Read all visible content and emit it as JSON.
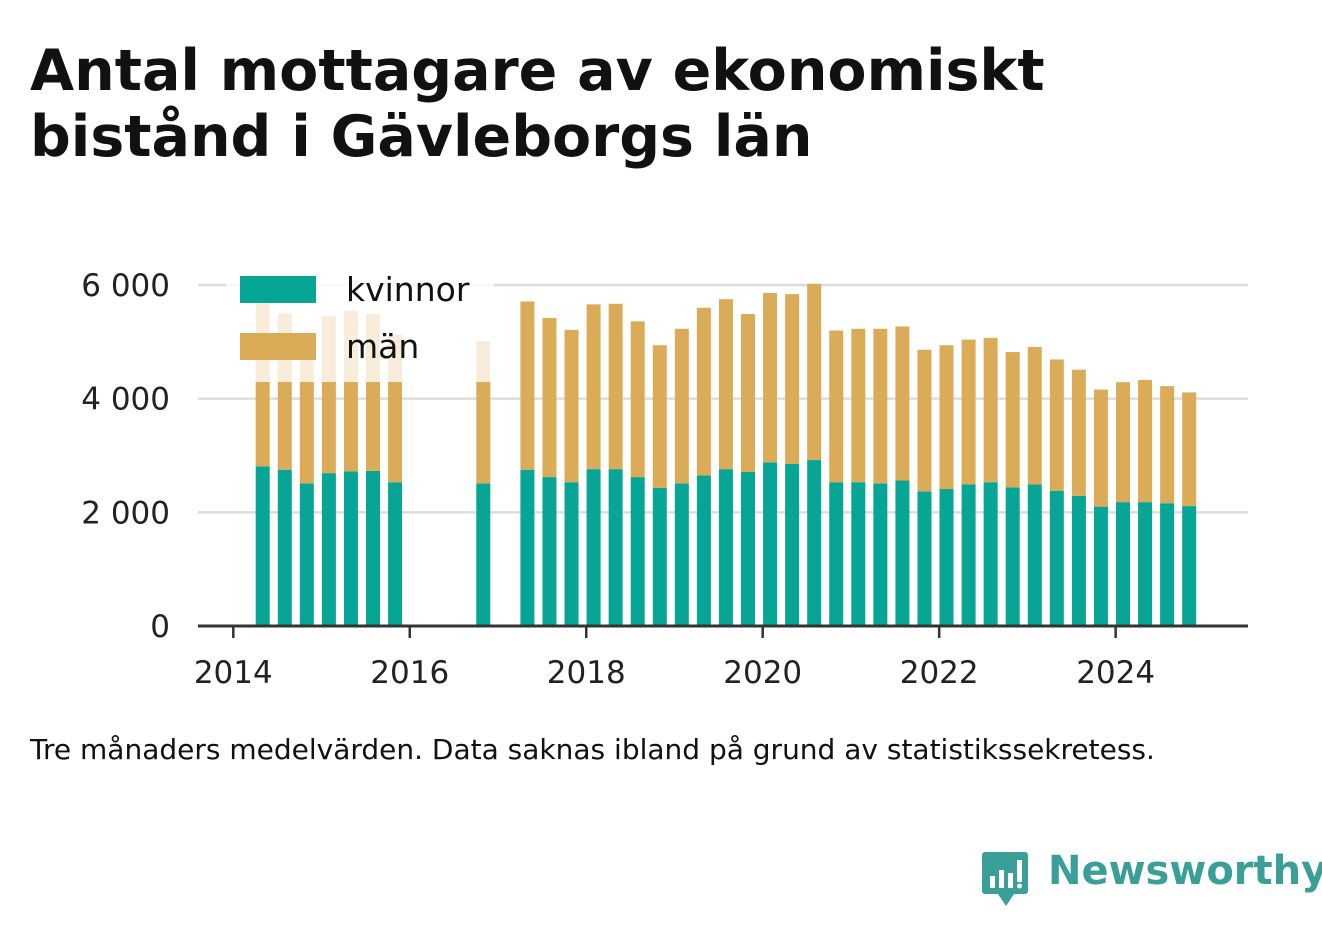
{
  "title": "Antal mottagare av ekonomiskt bistånd i Gävleborgs län",
  "note": "Tre månaders medelvärden. Data saknas ibland på grund av statistikssekretess.",
  "brand": {
    "name": "Newsworthy",
    "color": "#3a9f98",
    "icon": "newsworthy-logo-icon"
  },
  "colors": {
    "kvinnor": "#07a596",
    "man": "#dbac58",
    "grid": "#dddddd",
    "axis": "#333333"
  },
  "chart_data": {
    "type": "bar",
    "stacked": true,
    "x_label": "",
    "y_label": "",
    "ylim": [
      0,
      6000
    ],
    "yticks": [
      0,
      2000,
      4000,
      6000
    ],
    "ytick_labels": [
      "0",
      "2 000",
      "4 000",
      "6 000"
    ],
    "xticks": [
      2014,
      2016,
      2018,
      2020,
      2022,
      2024
    ],
    "xtick_labels": [
      "2014",
      "2016",
      "2018",
      "2020",
      "2022",
      "2024"
    ],
    "xlim": [
      2013.6,
      2025.5
    ],
    "grid": "horizontal",
    "legend_position": "top-left",
    "series": [
      {
        "name": "kvinnor",
        "color": "#07a596"
      },
      {
        "name": "män",
        "color": "#dbac58"
      }
    ],
    "points": [
      {
        "x": "2014-05",
        "kvinnor": 2810,
        "man": 2990
      },
      {
        "x": "2014-08",
        "kvinnor": 2750,
        "man": 2750
      },
      {
        "x": "2014-11",
        "kvinnor": 2510,
        "man": 2560
      },
      {
        "x": "2015-02",
        "kvinnor": 2690,
        "man": 2760
      },
      {
        "x": "2015-05",
        "kvinnor": 2720,
        "man": 2830
      },
      {
        "x": "2015-08",
        "kvinnor": 2730,
        "man": 2760
      },
      {
        "x": "2015-11",
        "kvinnor": 2530,
        "man": 2590
      },
      {
        "x": "2016-11",
        "kvinnor": 2510,
        "man": 2500
      },
      {
        "x": "2017-05",
        "kvinnor": 2750,
        "man": 2960
      },
      {
        "x": "2017-08",
        "kvinnor": 2620,
        "man": 2800
      },
      {
        "x": "2017-11",
        "kvinnor": 2530,
        "man": 2680
      },
      {
        "x": "2018-02",
        "kvinnor": 2760,
        "man": 2900
      },
      {
        "x": "2018-05",
        "kvinnor": 2760,
        "man": 2910
      },
      {
        "x": "2018-08",
        "kvinnor": 2620,
        "man": 2740
      },
      {
        "x": "2018-11",
        "kvinnor": 2430,
        "man": 2510
      },
      {
        "x": "2019-02",
        "kvinnor": 2510,
        "man": 2720
      },
      {
        "x": "2019-05",
        "kvinnor": 2650,
        "man": 2950
      },
      {
        "x": "2019-08",
        "kvinnor": 2760,
        "man": 2990
      },
      {
        "x": "2019-11",
        "kvinnor": 2710,
        "man": 2780
      },
      {
        "x": "2020-02",
        "kvinnor": 2880,
        "man": 2980
      },
      {
        "x": "2020-05",
        "kvinnor": 2850,
        "man": 2990
      },
      {
        "x": "2020-08",
        "kvinnor": 2920,
        "man": 3100
      },
      {
        "x": "2020-11",
        "kvinnor": 2530,
        "man": 2670
      },
      {
        "x": "2021-02",
        "kvinnor": 2530,
        "man": 2700
      },
      {
        "x": "2021-05",
        "kvinnor": 2510,
        "man": 2720
      },
      {
        "x": "2021-08",
        "kvinnor": 2560,
        "man": 2710
      },
      {
        "x": "2021-11",
        "kvinnor": 2370,
        "man": 2490
      },
      {
        "x": "2022-02",
        "kvinnor": 2410,
        "man": 2530
      },
      {
        "x": "2022-05",
        "kvinnor": 2490,
        "man": 2550
      },
      {
        "x": "2022-08",
        "kvinnor": 2530,
        "man": 2540
      },
      {
        "x": "2022-11",
        "kvinnor": 2440,
        "man": 2380
      },
      {
        "x": "2023-02",
        "kvinnor": 2490,
        "man": 2420
      },
      {
        "x": "2023-05",
        "kvinnor": 2380,
        "man": 2310
      },
      {
        "x": "2023-08",
        "kvinnor": 2290,
        "man": 2220
      },
      {
        "x": "2023-11",
        "kvinnor": 2100,
        "man": 2060
      },
      {
        "x": "2024-02",
        "kvinnor": 2180,
        "man": 2110
      },
      {
        "x": "2024-05",
        "kvinnor": 2180,
        "man": 2150
      },
      {
        "x": "2024-08",
        "kvinnor": 2160,
        "man": 2060
      },
      {
        "x": "2024-11",
        "kvinnor": 2110,
        "man": 2000
      }
    ]
  }
}
